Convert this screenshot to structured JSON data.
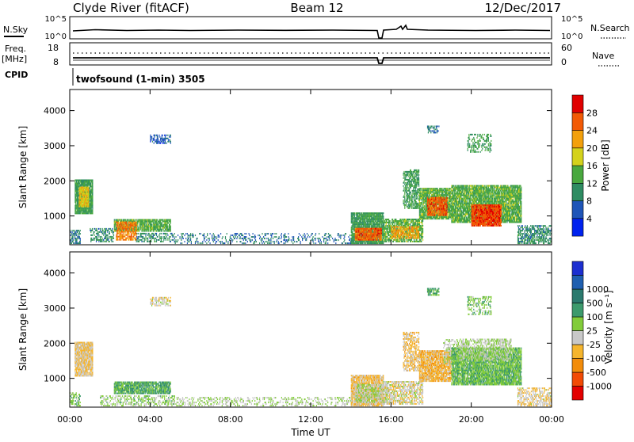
{
  "header": {
    "station": "Clyde River (fitACF)",
    "beam": "Beam 12",
    "date": "12/Dec/2017"
  },
  "strip_top": {
    "left_label": "N.Sky",
    "right_label": "N.Search",
    "left_ticks": [
      "10^5",
      "10^0"
    ],
    "right_ticks": [
      "10^5",
      "10^0"
    ]
  },
  "strip_freq": {
    "left_label_1": "Freq.",
    "left_label_2": "[MHz]",
    "right_label": "Nave",
    "left_ticks": [
      "18",
      "8"
    ],
    "right_ticks": [
      "60",
      "0"
    ]
  },
  "cpid": {
    "label": "CPID",
    "value": "twofsound (1-min) 3505"
  },
  "colors": {
    "power_scale": [
      "#0022ee",
      "#1f55b8",
      "#2e8c62",
      "#49a83f",
      "#d4d21c",
      "#f3a00c",
      "#f25a05",
      "#e00000"
    ],
    "velocity_scale": [
      "#e30000",
      "#f24a05",
      "#f28c0a",
      "#f5b52d",
      "#c8c8c8",
      "#82cc3a",
      "#3c9a6c",
      "#2b7a6e",
      "#1f5fb0",
      "#1c2fd0"
    ],
    "ground_scatter": "#c8c8c8"
  },
  "chart_data": [
    {
      "type": "heatmap",
      "title": "",
      "xlabel": "",
      "ylabel": "Slant Range [km]",
      "colorbar_label": "Power [dB]",
      "xlim": [
        0,
        24
      ],
      "ylim": [
        180,
        4600
      ],
      "x_ticks": [
        "00:00",
        "04:00",
        "08:00",
        "12:00",
        "16:00",
        "20:00",
        "00:00"
      ],
      "y_ticks": [
        "1000",
        "2000",
        "3000",
        "4000"
      ],
      "y_tick_values": [
        1000,
        2000,
        3000,
        4000
      ],
      "colorbar_ticks": [
        "4",
        "8",
        "12",
        "16",
        "20",
        "24",
        "28"
      ],
      "colorbar_range": [
        0,
        32
      ],
      "regions": [
        {
          "t0": 0.25,
          "t1": 1.15,
          "r0": 1050,
          "r1": 2000,
          "value": 12,
          "density": 0.9
        },
        {
          "t0": 0.45,
          "t1": 0.95,
          "r0": 1250,
          "r1": 1800,
          "value": 20,
          "density": 0.85
        },
        {
          "t0": 0.0,
          "t1": 0.5,
          "r0": 200,
          "r1": 600,
          "value": 9,
          "density": 0.6
        },
        {
          "t0": 1.0,
          "t1": 2.2,
          "r0": 250,
          "r1": 650,
          "value": 10,
          "density": 0.45
        },
        {
          "t0": 2.2,
          "t1": 5.0,
          "r0": 550,
          "r1": 900,
          "value": 14,
          "density": 0.8
        },
        {
          "t0": 2.3,
          "t1": 3.3,
          "r0": 300,
          "r1": 800,
          "value": 24,
          "density": 0.7
        },
        {
          "t0": 3.3,
          "t1": 5.2,
          "r0": 250,
          "r1": 500,
          "value": 10,
          "density": 0.45
        },
        {
          "t0": 5.2,
          "t1": 14.0,
          "r0": 200,
          "r1": 500,
          "value": 8,
          "density": 0.22
        },
        {
          "t0": 14.0,
          "t1": 15.6,
          "r0": 200,
          "r1": 1100,
          "value": 12,
          "density": 0.9
        },
        {
          "t0": 14.2,
          "t1": 15.5,
          "r0": 300,
          "r1": 650,
          "value": 26,
          "density": 0.85
        },
        {
          "t0": 15.6,
          "t1": 17.6,
          "r0": 250,
          "r1": 900,
          "value": 14,
          "density": 0.7
        },
        {
          "t0": 16.0,
          "t1": 17.4,
          "r0": 350,
          "r1": 700,
          "value": 22,
          "density": 0.6
        },
        {
          "t0": 16.6,
          "t1": 17.4,
          "r0": 1200,
          "r1": 2300,
          "value": 12,
          "density": 0.6
        },
        {
          "t0": 17.4,
          "t1": 19.0,
          "r0": 900,
          "r1": 1800,
          "value": 14,
          "density": 0.85
        },
        {
          "t0": 17.8,
          "t1": 18.8,
          "r0": 1000,
          "r1": 1500,
          "value": 26,
          "density": 0.85
        },
        {
          "t0": 19.0,
          "t1": 22.5,
          "r0": 800,
          "r1": 1850,
          "value": 14,
          "density": 0.85
        },
        {
          "t0": 20.0,
          "t1": 21.5,
          "r0": 700,
          "r1": 1300,
          "value": 27,
          "density": 0.9
        },
        {
          "t0": 22.3,
          "t1": 24.0,
          "r0": 200,
          "r1": 700,
          "value": 10,
          "density": 0.55
        },
        {
          "t0": 4.0,
          "t1": 5.0,
          "r0": 3050,
          "r1": 3300,
          "value": 6,
          "density": 0.5
        },
        {
          "t0": 17.8,
          "t1": 18.4,
          "r0": 3350,
          "r1": 3550,
          "value": 8,
          "density": 0.5
        },
        {
          "t0": 19.8,
          "t1": 21.0,
          "r0": 2800,
          "r1": 3300,
          "value": 12,
          "density": 0.35
        }
      ]
    },
    {
      "type": "heatmap",
      "title": "",
      "xlabel": "Time UT",
      "ylabel": "Slant Range [km]",
      "colorbar_label": "Velocity [m s⁻¹]",
      "xlim": [
        0,
        24
      ],
      "ylim": [
        180,
        4600
      ],
      "x_ticks": [
        "00:00",
        "04:00",
        "08:00",
        "12:00",
        "16:00",
        "20:00",
        "00:00"
      ],
      "y_ticks": [
        "1000",
        "2000",
        "3000",
        "4000"
      ],
      "y_tick_values": [
        1000,
        2000,
        3000,
        4000
      ],
      "colorbar_ticks": [
        "-1000",
        "-500",
        "-100",
        "-25",
        "25",
        "100",
        "500",
        "1000"
      ],
      "colorbar_range": [
        -1200,
        1200
      ],
      "regions": [
        {
          "t0": 0.25,
          "t1": 1.15,
          "r0": 1050,
          "r1": 2000,
          "value": -250,
          "density": 0.9
        },
        {
          "t0": 0.0,
          "t1": 0.5,
          "r0": 200,
          "r1": 600,
          "value": 150,
          "density": 0.5
        },
        {
          "t0": 2.2,
          "t1": 5.0,
          "r0": 550,
          "r1": 900,
          "value": 300,
          "density": 0.85
        },
        {
          "t0": 1.5,
          "t1": 5.2,
          "r0": 200,
          "r1": 500,
          "value": 60,
          "density": 0.4
        },
        {
          "t0": 5.2,
          "t1": 14.0,
          "r0": 200,
          "r1": 450,
          "value": 0,
          "density": 0.3
        },
        {
          "t0": 14.0,
          "t1": 15.6,
          "r0": 200,
          "r1": 1100,
          "value": -300,
          "density": 0.85
        },
        {
          "t0": 14.2,
          "t1": 15.8,
          "r0": 300,
          "r1": 800,
          "value": 0,
          "density": 0.6
        },
        {
          "t0": 15.6,
          "t1": 17.6,
          "r0": 250,
          "r1": 900,
          "value": -150,
          "density": 0.6
        },
        {
          "t0": 16.6,
          "t1": 17.4,
          "r0": 1200,
          "r1": 2300,
          "value": -300,
          "density": 0.55
        },
        {
          "t0": 17.4,
          "t1": 19.0,
          "r0": 900,
          "r1": 1800,
          "value": -350,
          "density": 0.85
        },
        {
          "t0": 18.6,
          "t1": 19.4,
          "r0": 1400,
          "r1": 2100,
          "value": 0,
          "density": 0.5
        },
        {
          "t0": 19.0,
          "t1": 22.5,
          "r0": 800,
          "r1": 1850,
          "value": 200,
          "density": 0.85
        },
        {
          "t0": 19.4,
          "t1": 22.0,
          "r0": 1500,
          "r1": 2100,
          "value": 0,
          "density": 0.55
        },
        {
          "t0": 22.3,
          "t1": 24.0,
          "r0": 200,
          "r1": 700,
          "value": -200,
          "density": 0.5
        },
        {
          "t0": 4.0,
          "t1": 5.0,
          "r0": 3050,
          "r1": 3300,
          "value": -150,
          "density": 0.5
        },
        {
          "t0": 17.8,
          "t1": 18.4,
          "r0": 3350,
          "r1": 3550,
          "value": 300,
          "density": 0.5
        },
        {
          "t0": 19.8,
          "t1": 21.0,
          "r0": 2800,
          "r1": 3300,
          "value": 150,
          "density": 0.35
        }
      ]
    }
  ]
}
